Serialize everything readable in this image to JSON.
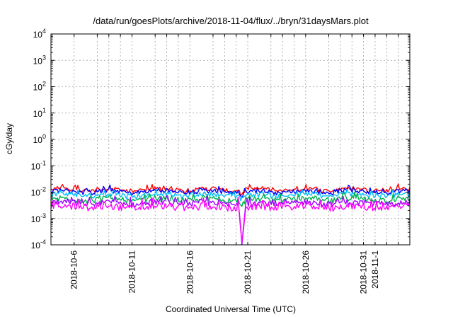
{
  "chart_data": {
    "type": "line",
    "title": "/data/run/goesPlots/archive/2018-11-04/flux/../bryn/31daysMars.plot",
    "xlabel": "Coordinated Universal Time (UTC)",
    "ylabel": "cGy/day",
    "yscale": "log",
    "ylim": [
      0.0001,
      10000
    ],
    "xlim": [
      "2018-10-04",
      "2018-11-04"
    ],
    "grid": true,
    "y_ticks": [
      {
        "base": "10",
        "exp": "-4"
      },
      {
        "base": "10",
        "exp": "-3"
      },
      {
        "base": "10",
        "exp": "-2"
      },
      {
        "base": "10",
        "exp": "-1"
      },
      {
        "base": "10",
        "exp": "0"
      },
      {
        "base": "10",
        "exp": "1"
      },
      {
        "base": "10",
        "exp": "2"
      },
      {
        "base": "10",
        "exp": "3"
      },
      {
        "base": "10",
        "exp": "4"
      }
    ],
    "x_ticks": [
      "2018-10-6",
      "2018-10-11",
      "2018-10-16",
      "2018-10-21",
      "2018-10-26",
      "2018-10-31",
      "2018-11-1"
    ],
    "x_tick_dates": [
      "2018-10-06",
      "2018-10-11",
      "2018-10-16",
      "2018-10-21",
      "2018-10-26",
      "2018-10-31",
      "2018-11-01"
    ],
    "x_grid_dates": [
      "2018-10-06",
      "2018-10-08",
      "2018-10-09",
      "2018-10-10",
      "2018-10-11",
      "2018-10-13",
      "2018-10-14",
      "2018-10-15",
      "2018-10-16",
      "2018-10-18",
      "2018-10-19",
      "2018-10-20",
      "2018-10-21",
      "2018-10-23",
      "2018-10-24",
      "2018-10-25",
      "2018-10-26",
      "2018-10-28",
      "2018-10-29",
      "2018-10-30",
      "2018-10-31",
      "2018-11-01",
      "2018-11-02",
      "2018-11-03"
    ],
    "series": [
      {
        "color": "#ff0000",
        "level": 0.0125,
        "noise": 0.07
      },
      {
        "color": "#0000ff",
        "level": 0.0105,
        "noise": 0.07
      },
      {
        "color": "#00bfff",
        "level": 0.0078,
        "noise": 0.08
      },
      {
        "color": "#00b050",
        "level": 0.0052,
        "noise": 0.09
      },
      {
        "color": "#a000ff",
        "level": 0.0038,
        "noise": 0.1
      },
      {
        "color": "#ff00ff",
        "level": 0.0027,
        "noise": 0.13
      }
    ],
    "dip": {
      "date": "2018-10-20T12:00",
      "min": 0.0001
    }
  }
}
